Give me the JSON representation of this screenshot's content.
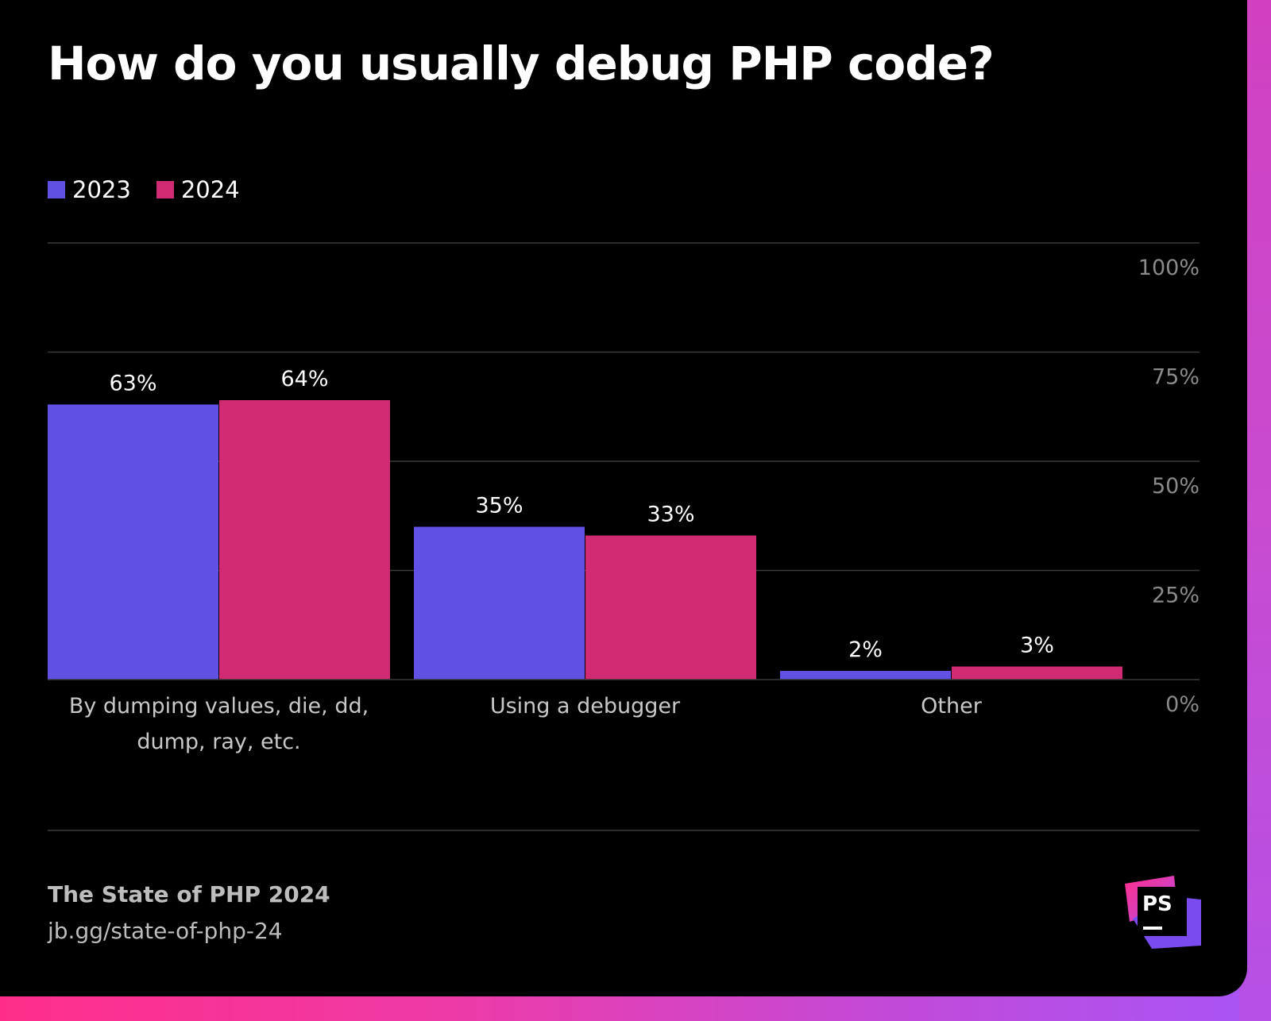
{
  "title": "How do you usually debug PHP code?",
  "colors": {
    "series_2023": "#6050e4",
    "series_2024": "#cf2a72",
    "grid": "#3a3a3a",
    "tick": "#8a8a8a",
    "category": "#c8c8c8"
  },
  "chart_data": {
    "type": "bar",
    "title": "How do you usually debug PHP code?",
    "categories": [
      "By dumping values, die, dd, dump, ray, etc.",
      "Using a debugger",
      "Other"
    ],
    "category_lines": [
      [
        "By dumping values, die, dd,",
        "dump, ray, etc."
      ],
      [
        "Using a debugger"
      ],
      [
        "Other"
      ]
    ],
    "series": [
      {
        "name": "2023",
        "values": [
          63,
          35,
          2
        ],
        "labels": [
          "63%",
          "35%",
          "2%"
        ]
      },
      {
        "name": "2024",
        "values": [
          64,
          33,
          3
        ],
        "labels": [
          "64%",
          "33%",
          "3%"
        ]
      }
    ],
    "ylim": [
      0,
      100
    ],
    "yticks": [
      0,
      25,
      50,
      75,
      100
    ],
    "ytick_labels": [
      "0%",
      "25%",
      "50%",
      "75%",
      "100%"
    ],
    "grid": true,
    "legend": "top-left"
  },
  "footer": {
    "title": "The State of PHP 2024",
    "link": "jb.gg/state-of-php-24"
  },
  "logo": {
    "text": "PS",
    "icon": "phpstorm-logo-icon"
  }
}
